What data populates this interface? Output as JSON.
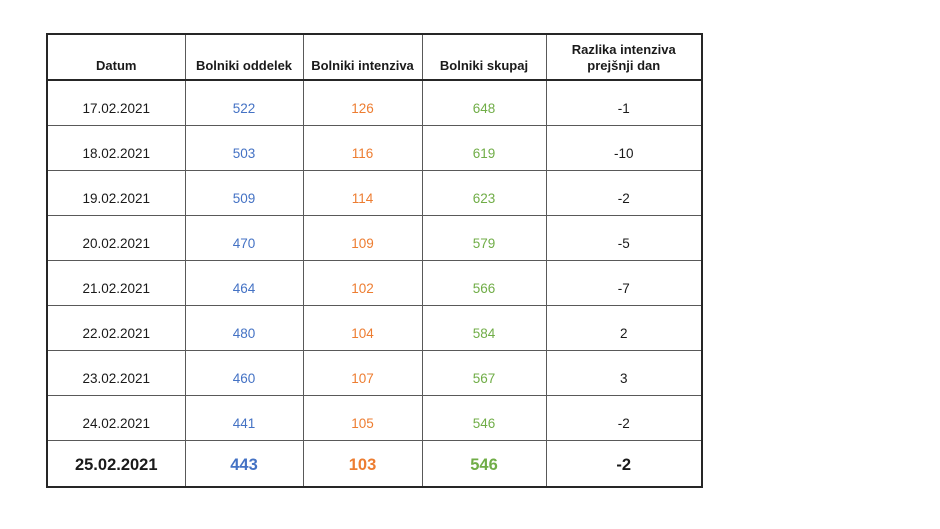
{
  "chart_data": {
    "type": "table",
    "columns": [
      "Datum",
      "Bolniki oddelek",
      "Bolniki intenziva",
      "Bolniki skupaj",
      "Razlika intenziva prejšnji dan"
    ],
    "rows": [
      {
        "datum": "17.02.2021",
        "oddelek": "522",
        "intenziva": "126",
        "skupaj": "648",
        "razlika": "-1"
      },
      {
        "datum": "18.02.2021",
        "oddelek": "503",
        "intenziva": "116",
        "skupaj": "619",
        "razlika": "-10"
      },
      {
        "datum": "19.02.2021",
        "oddelek": "509",
        "intenziva": "114",
        "skupaj": "623",
        "razlika": "-2"
      },
      {
        "datum": "20.02.2021",
        "oddelek": "470",
        "intenziva": "109",
        "skupaj": "579",
        "razlika": "-5"
      },
      {
        "datum": "21.02.2021",
        "oddelek": "464",
        "intenziva": "102",
        "skupaj": "566",
        "razlika": "-7"
      },
      {
        "datum": "22.02.2021",
        "oddelek": "480",
        "intenziva": "104",
        "skupaj": "584",
        "razlika": "2"
      },
      {
        "datum": "23.02.2021",
        "oddelek": "460",
        "intenziva": "107",
        "skupaj": "567",
        "razlika": "3"
      },
      {
        "datum": "24.02.2021",
        "oddelek": "441",
        "intenziva": "105",
        "skupaj": "546",
        "razlika": "-2"
      },
      {
        "datum": "25.02.2021",
        "oddelek": "443",
        "intenziva": "103",
        "skupaj": "546",
        "razlika": "-2"
      }
    ],
    "total_row_index": 8,
    "colors": {
      "bolniki_oddelek": "#4472C4",
      "bolniki_intenziva": "#ED7D31",
      "bolniki_skupaj": "#70AD47",
      "razlika": "#1a1a1a",
      "border_outer": "#262626",
      "border_inner": "#595959",
      "background": "#ffffff"
    },
    "layout": {
      "grid": true,
      "header_bold": true,
      "last_row_bold": true
    }
  }
}
